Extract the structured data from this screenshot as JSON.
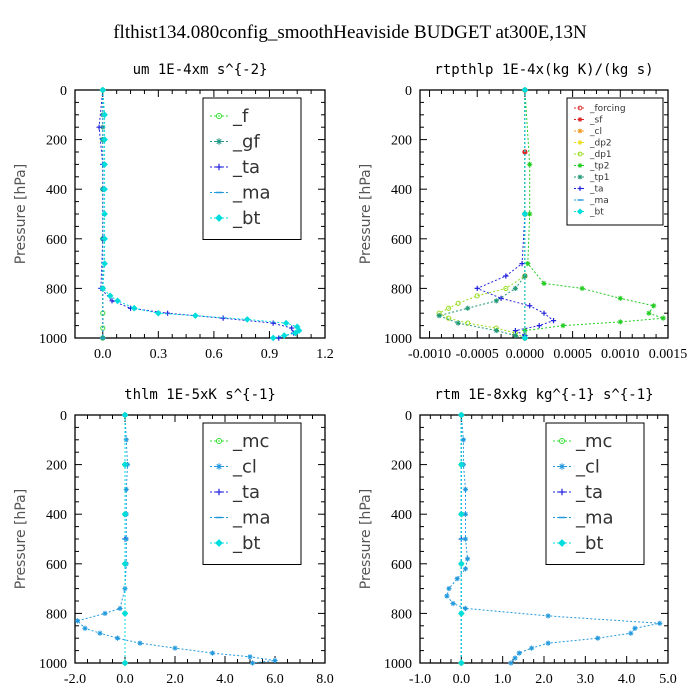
{
  "figure_title": "flthist134.080config_smoothHeaviside  BUDGET at300E,13N",
  "chart_data": [
    {
      "type": "line",
      "title": "um  1E-4xm s^{-2}",
      "ylabel": "Pressure [hPa]",
      "xlim": [
        -0.15,
        1.2
      ],
      "ylim": [
        1000,
        0
      ],
      "xticks": [
        "0.0",
        "0.3",
        "0.6",
        "0.9",
        "1.2"
      ],
      "xtick_values": [
        0,
        0.3,
        0.6,
        0.9,
        1.2
      ],
      "yticks": [
        "0",
        "200",
        "400",
        "600",
        "800",
        "1000"
      ],
      "ytick_values": [
        0,
        200,
        400,
        600,
        800,
        1000
      ],
      "legend_position": "top-right",
      "legend_size": "large",
      "series": [
        {
          "name": "_f",
          "color": "#33dd33",
          "marker": "circle",
          "y": [
            0,
            200,
            400,
            600,
            800,
            900,
            960,
            1000
          ],
          "x": [
            0,
            0,
            0,
            0,
            0,
            0,
            0,
            0
          ]
        },
        {
          "name": "_gf",
          "color": "#229988",
          "marker": "star",
          "y": [
            0,
            100,
            150,
            200,
            400,
            600,
            800,
            1000
          ],
          "x": [
            0,
            0,
            0,
            0,
            0,
            0,
            0,
            0
          ]
        },
        {
          "name": "_ta",
          "color": "#2222dd",
          "marker": "plus",
          "y": [
            0,
            150,
            300,
            600,
            800,
            850,
            880,
            900,
            920,
            940,
            960,
            980,
            1000
          ],
          "x": [
            0,
            -0.02,
            0,
            0,
            -0.01,
            0.05,
            0.15,
            0.35,
            0.65,
            0.92,
            1.02,
            1.03,
            0.95
          ]
        },
        {
          "name": "_ma",
          "color": "#2299dd",
          "marker": "dash",
          "y": [
            0,
            200,
            400,
            600,
            800,
            1000
          ],
          "x": [
            0,
            0,
            0,
            0,
            0,
            0
          ]
        },
        {
          "name": "_bt",
          "color": "#00dddd",
          "marker": "diamond",
          "y": [
            0,
            100,
            200,
            300,
            400,
            500,
            600,
            700,
            800,
            830,
            850,
            880,
            900,
            910,
            925,
            940,
            955,
            970,
            980,
            990,
            1000
          ],
          "x": [
            0,
            0.01,
            0.01,
            0.01,
            0.01,
            0.01,
            0.01,
            0.01,
            0,
            0.04,
            0.08,
            0.17,
            0.3,
            0.5,
            0.78,
            0.99,
            1.05,
            1.06,
            1.04,
            0.98,
            0.92
          ]
        }
      ]
    },
    {
      "type": "line",
      "title": "rtpthlp  1E-4x(kg K)/(kg s)",
      "ylabel": "Pressure [hPa]",
      "xlim": [
        -0.0011,
        0.0015
      ],
      "ylim": [
        1000,
        0
      ],
      "xticks": [
        "-0.0010",
        "-0.0005",
        "0.0000",
        "0.0005",
        "0.0010",
        "0.0015"
      ],
      "xtick_values": [
        -0.001,
        -0.0005,
        0,
        0.0005,
        0.001,
        0.0015
      ],
      "yticks": [
        "0",
        "200",
        "400",
        "600",
        "800",
        "1000"
      ],
      "ytick_values": [
        0,
        200,
        400,
        600,
        800,
        1000
      ],
      "legend_position": "top-right",
      "legend_size": "small",
      "series": [
        {
          "name": "_forcing",
          "color": "#dd3333",
          "marker": "circle",
          "y": [
            0,
            250,
            500,
            750,
            1000
          ],
          "x": [
            0,
            0,
            0,
            0,
            0
          ]
        },
        {
          "name": "_sf",
          "color": "#dd2222",
          "marker": "star",
          "y": [
            0,
            250,
            500,
            750,
            1000
          ],
          "x": [
            0,
            0,
            0,
            0,
            0
          ]
        },
        {
          "name": "_cl",
          "color": "#ee9922",
          "marker": "star",
          "y": [
            0,
            500,
            1000
          ],
          "x": [
            0,
            0,
            0
          ]
        },
        {
          "name": "_dp2",
          "color": "#eedd22",
          "marker": "star",
          "y": [
            0,
            500,
            1000
          ],
          "x": [
            0,
            0,
            0
          ]
        },
        {
          "name": "_dp1",
          "color": "#99dd22",
          "marker": "circle",
          "y": [
            0,
            500,
            750,
            800,
            830,
            860,
            880,
            900,
            920,
            940,
            960,
            980,
            1000
          ],
          "x": [
            0,
            0,
            0,
            -0.0002,
            -0.0005,
            -0.0007,
            -0.0008,
            -0.0009,
            -0.0008,
            -0.0006,
            -0.0003,
            -0.0001,
            0
          ]
        },
        {
          "name": "_tp2",
          "color": "#22cc22",
          "marker": "star",
          "y": [
            0,
            300,
            500,
            700,
            780,
            800,
            840,
            870,
            900,
            920,
            935,
            950,
            970,
            990,
            1000
          ],
          "x": [
            0,
            5e-05,
            5e-05,
            3e-05,
            0.0002,
            0.0006,
            0.001,
            0.00135,
            0.0013,
            0.00145,
            0.001,
            0.0004,
            0,
            0,
            0
          ]
        },
        {
          "name": "_tp1",
          "color": "#229977",
          "marker": "star",
          "y": [
            0,
            500,
            750,
            800,
            850,
            880,
            910,
            940,
            970,
            990,
            1000
          ],
          "x": [
            0,
            0,
            0,
            -0.0001,
            -0.0003,
            -0.0006,
            -0.0009,
            -0.0007,
            -0.0003,
            -0.0001,
            0
          ]
        },
        {
          "name": "_ta",
          "color": "#2222dd",
          "marker": "plus",
          "y": [
            0,
            500,
            700,
            750,
            800,
            840,
            870,
            900,
            930,
            950,
            970,
            990,
            1000
          ],
          "x": [
            0,
            0,
            -3e-05,
            -0.0002,
            -0.0005,
            -0.00025,
            5e-05,
            0.0002,
            0.0003,
            0.00015,
            -0.0001,
            0,
            0
          ]
        },
        {
          "name": "_ma",
          "color": "#2299dd",
          "marker": "dash",
          "y": [
            0,
            500,
            1000
          ],
          "x": [
            0,
            0,
            0
          ]
        },
        {
          "name": "_bt",
          "color": "#00dddd",
          "marker": "diamond",
          "y": [
            0,
            500,
            1000
          ],
          "x": [
            0,
            0,
            0
          ]
        }
      ]
    },
    {
      "type": "line",
      "title": "thlm  1E-5xK s^{-1}",
      "ylabel": "Pressure [hPa]",
      "xlim": [
        -2.0,
        8.0
      ],
      "ylim": [
        1000,
        0
      ],
      "xticks": [
        "-2.0",
        "0.0",
        "2.0",
        "4.0",
        "6.0",
        "8.0"
      ],
      "xtick_values": [
        -2,
        0,
        2,
        4,
        6,
        8
      ],
      "yticks": [
        "0",
        "200",
        "400",
        "600",
        "800",
        "1000"
      ],
      "ytick_values": [
        0,
        200,
        400,
        600,
        800,
        1000
      ],
      "legend_position": "top-right",
      "legend_size": "large",
      "series": [
        {
          "name": "_mc",
          "color": "#33dd33",
          "marker": "circle",
          "y": [
            0,
            200,
            400,
            600,
            800,
            1000
          ],
          "x": [
            0,
            0,
            0,
            0,
            0,
            0
          ]
        },
        {
          "name": "_cl",
          "color": "#2299dd",
          "marker": "star",
          "y": [
            0,
            100,
            200,
            300,
            400,
            500,
            600,
            700,
            780,
            800,
            830,
            860,
            880,
            900,
            920,
            940,
            960,
            975,
            990,
            1000
          ],
          "x": [
            0,
            0.05,
            0.1,
            0.05,
            0.05,
            0.05,
            0.05,
            0,
            -0.2,
            -0.8,
            -1.9,
            -1.6,
            -1.0,
            -0.3,
            0.6,
            2.0,
            3.5,
            5.0,
            6.0,
            5.1
          ]
        },
        {
          "name": "_ta",
          "color": "#2222dd",
          "marker": "plus",
          "y": [
            0,
            500,
            1000
          ],
          "x": [
            0,
            0,
            0
          ]
        },
        {
          "name": "_ma",
          "color": "#2299dd",
          "marker": "dash",
          "y": [
            0,
            500,
            1000
          ],
          "x": [
            0,
            0,
            0
          ]
        },
        {
          "name": "_bt",
          "color": "#00dddd",
          "marker": "diamond",
          "y": [
            0,
            200,
            400,
            600,
            800,
            1000
          ],
          "x": [
            0,
            0,
            0,
            0,
            0,
            0
          ]
        }
      ]
    },
    {
      "type": "line",
      "title": "rtm  1E-8xkg kg^{-1} s^{-1}",
      "ylabel": "Pressure [hPa]",
      "xlim": [
        -1.0,
        5.0
      ],
      "ylim": [
        1000,
        0
      ],
      "xticks": [
        "-1.0",
        "0.0",
        "1.0",
        "2.0",
        "3.0",
        "4.0",
        "5.0"
      ],
      "xtick_values": [
        -1,
        0,
        1,
        2,
        3,
        4,
        5
      ],
      "yticks": [
        "0",
        "200",
        "400",
        "600",
        "800",
        "1000"
      ],
      "ytick_values": [
        0,
        200,
        400,
        600,
        800,
        1000
      ],
      "legend_position": "top-right",
      "legend_size": "large",
      "series": [
        {
          "name": "_mc",
          "color": "#33dd33",
          "marker": "circle",
          "y": [
            0,
            200,
            400,
            600,
            800,
            1000
          ],
          "x": [
            0,
            0,
            0,
            0,
            0,
            0
          ]
        },
        {
          "name": "_cl",
          "color": "#2299dd",
          "marker": "star",
          "y": [
            0,
            100,
            200,
            300,
            400,
            500,
            580,
            620,
            660,
            700,
            730,
            760,
            780,
            810,
            840,
            860,
            880,
            900,
            920,
            940,
            960,
            980,
            1000
          ],
          "x": [
            0,
            0.05,
            0.05,
            0.1,
            0.1,
            0.1,
            0.15,
            0.1,
            -0.1,
            -0.3,
            -0.35,
            -0.2,
            0.1,
            2.1,
            4.8,
            4.2,
            4.1,
            3.3,
            2.1,
            1.7,
            1.4,
            1.3,
            1.2
          ]
        },
        {
          "name": "_ta",
          "color": "#2222dd",
          "marker": "plus",
          "y": [
            0,
            500,
            1000
          ],
          "x": [
            0,
            0,
            0
          ]
        },
        {
          "name": "_ma",
          "color": "#2299dd",
          "marker": "dash",
          "y": [
            0,
            500,
            1000
          ],
          "x": [
            0,
            0,
            0
          ]
        },
        {
          "name": "_bt",
          "color": "#00dddd",
          "marker": "diamond",
          "y": [
            0,
            200,
            400,
            600,
            800,
            1000
          ],
          "x": [
            0,
            0,
            0,
            0,
            0,
            0
          ]
        }
      ]
    }
  ]
}
